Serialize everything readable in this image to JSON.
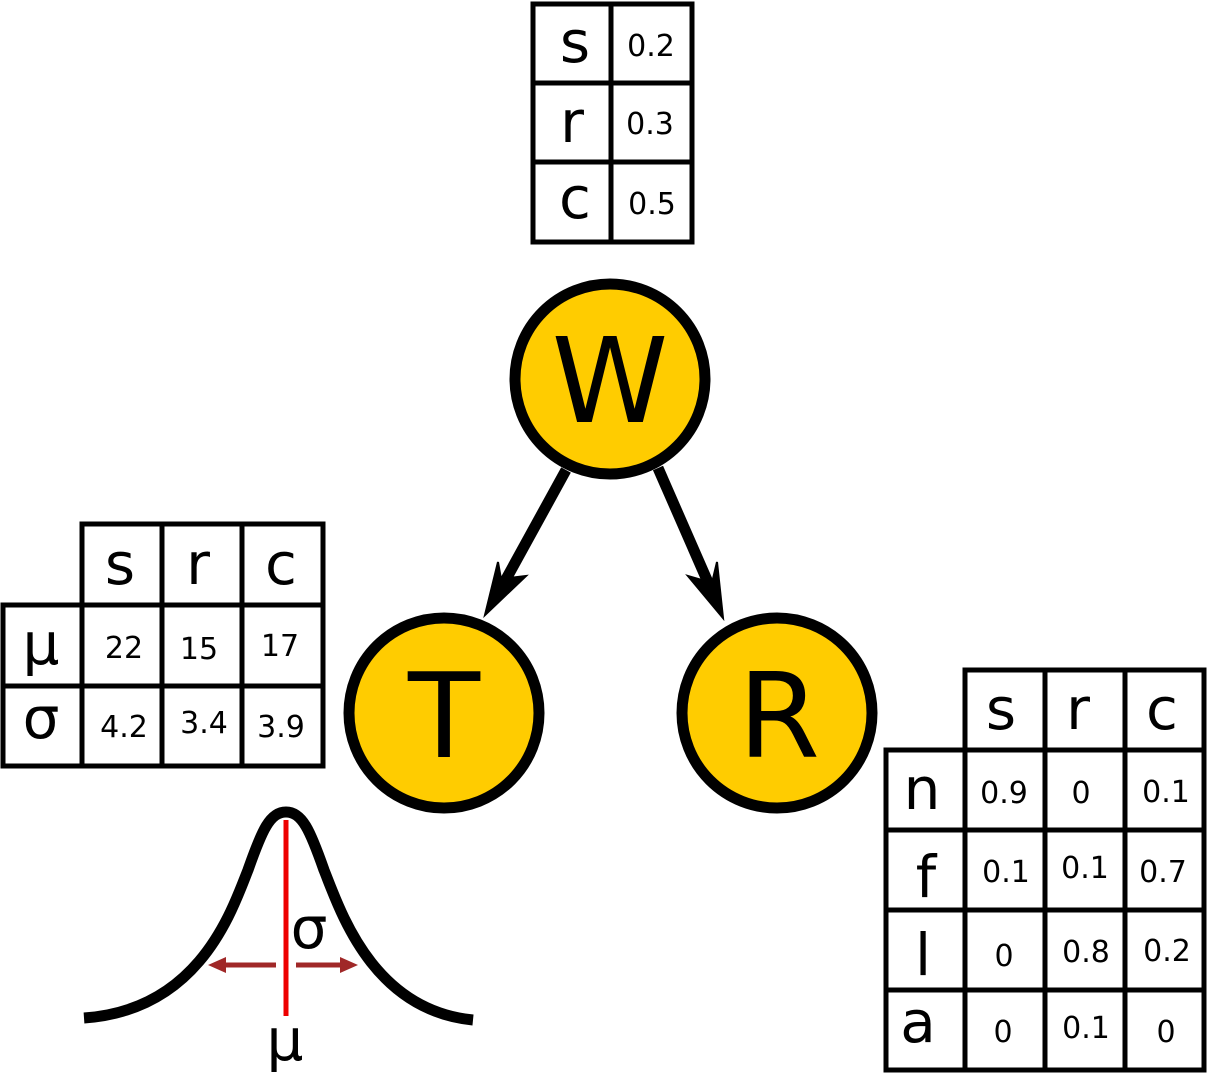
{
  "nodes": {
    "W": {
      "label": "W"
    },
    "T": {
      "label": "T"
    },
    "R": {
      "label": "R"
    }
  },
  "colors": {
    "node_fill": "#ffcc00",
    "outline": "#000000",
    "mean_line": "#ee0000",
    "sigma_arrow": "#a02828"
  },
  "w_table": {
    "rows": [
      {
        "label": "s",
        "value": "0.2"
      },
      {
        "label": "r",
        "value": "0.3"
      },
      {
        "label": "c",
        "value": "0.5"
      }
    ]
  },
  "t_table": {
    "columns": [
      "s",
      "r",
      "c"
    ],
    "rows": [
      {
        "label": "μ",
        "values": [
          "22",
          "15",
          "17"
        ]
      },
      {
        "label": "σ",
        "values": [
          "4.2",
          "3.4",
          "3.9"
        ]
      }
    ]
  },
  "r_table": {
    "columns": [
      "s",
      "r",
      "c"
    ],
    "rows": [
      {
        "label": "n",
        "values": [
          "0.9",
          "0",
          "0.1"
        ]
      },
      {
        "label": "f",
        "values": [
          "0.1",
          "0.1",
          "0.7"
        ]
      },
      {
        "label": "l",
        "values": [
          "0",
          "0.8",
          "0.2"
        ]
      },
      {
        "label": "a",
        "values": [
          "0",
          "0.1",
          "0"
        ]
      }
    ]
  },
  "gaussian": {
    "mu_label": "μ",
    "sigma_label": "σ"
  }
}
